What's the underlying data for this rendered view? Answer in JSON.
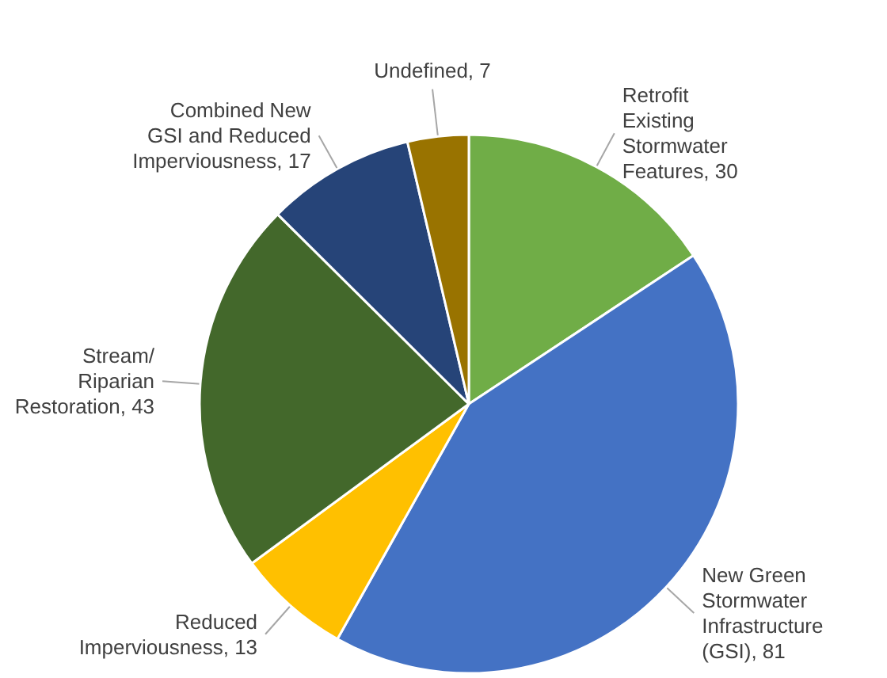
{
  "chart_data": {
    "type": "pie",
    "categories": [
      "Retrofit\nExisting\nStormwater\nFeatures",
      "New Green\nStormwater\nInfrastructure\n(GSI)",
      "Reduced\nImperviousness",
      "Stream/\nRiparian\nRestoration",
      "Combined New\nGSI and Reduced\nImperviousness",
      "Undefined"
    ],
    "values": [
      30,
      81,
      13,
      43,
      17,
      7
    ],
    "value_labels": [
      ", 30",
      ", 81",
      ", 13",
      ", 43",
      ", 17",
      ", 7"
    ],
    "colors": [
      "#70ad47",
      "#4472c4",
      "#ffc000",
      "#43682b",
      "#264478",
      "#997300"
    ],
    "data_labels": true,
    "legend": false
  }
}
